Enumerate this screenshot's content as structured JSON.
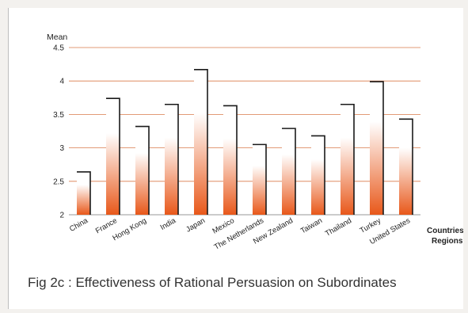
{
  "caption": "Fig 2c : Effectiveness of Rational Persuasion on Subordinates",
  "chart_data": {
    "type": "bar",
    "ylabel": "Mean",
    "xlabel": "Countries/ Regions",
    "xlabel_lines": [
      "Countries/",
      "Regions"
    ],
    "ylim": [
      2,
      4.5
    ],
    "yticks": [
      "2",
      "2.5",
      "3",
      "3.5",
      "4",
      "4.5"
    ],
    "grid": true,
    "categories": [
      "China",
      "France",
      "Hong Kong",
      "India",
      "Japan",
      "Mexico",
      "The Netherlands",
      "New Zealand",
      "Taiwan",
      "Thailand",
      "Turkey",
      "United States"
    ],
    "values": [
      2.64,
      3.74,
      3.32,
      3.65,
      4.17,
      3.63,
      3.05,
      3.29,
      3.18,
      3.65,
      3.99,
      3.43
    ],
    "bar_color_top": "#ffffff",
    "bar_color_bottom": "#e8581a",
    "bar_edge_color": "#1a1a1a",
    "grid_color": "#d97a4a"
  }
}
